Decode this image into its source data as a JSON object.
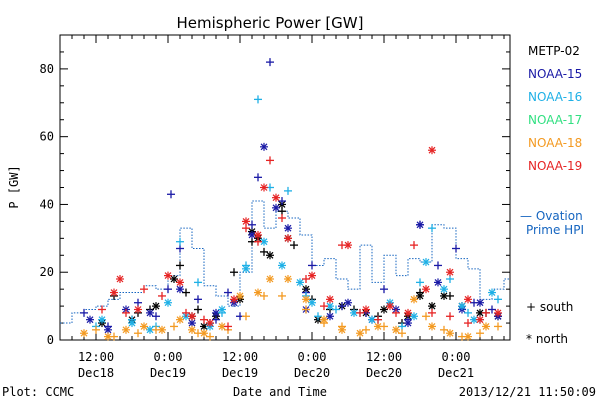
{
  "chart_data": {
    "type": "scatter",
    "title": "Hemispheric Power [GW]",
    "xlabel": "Date and Time",
    "ylabel": "P [GW]",
    "ylim": [
      0,
      90
    ],
    "yticks": [
      0,
      20,
      40,
      60,
      80
    ],
    "xlim_hours": [
      6,
      81
    ],
    "x_unit": "hours after 2013-12-18 00:00",
    "xticks": [
      {
        "x": 12,
        "top": "12:00",
        "bottom": "Dec18"
      },
      {
        "x": 24,
        "top": "0:00",
        "bottom": "Dec19"
      },
      {
        "x": 36,
        "top": "12:00",
        "bottom": "Dec19"
      },
      {
        "x": 48,
        "top": "0:00",
        "bottom": "Dec20"
      },
      {
        "x": 60,
        "top": "12:00",
        "bottom": "Dec20"
      },
      {
        "x": 72,
        "top": "0:00",
        "bottom": "Dec21"
      }
    ],
    "legend_position": "right",
    "series": [
      {
        "name": "METP-02",
        "color": "#000000",
        "south": [
          [
            15,
            13
          ],
          [
            19,
            8
          ],
          [
            21,
            9
          ],
          [
            26,
            22
          ],
          [
            27,
            14
          ],
          [
            29,
            9
          ],
          [
            31,
            5
          ],
          [
            35,
            20
          ],
          [
            38,
            29
          ],
          [
            40,
            26
          ],
          [
            43,
            38
          ],
          [
            45,
            28
          ],
          [
            48,
            12
          ],
          [
            51,
            9
          ],
          [
            55,
            9
          ],
          [
            59,
            7
          ],
          [
            63,
            5
          ],
          [
            66,
            14
          ],
          [
            71,
            13
          ],
          [
            77,
            8
          ]
        ],
        "north": [
          [
            13,
            5
          ],
          [
            18,
            6
          ],
          [
            22,
            10
          ],
          [
            25,
            18
          ],
          [
            28,
            7
          ],
          [
            30,
            4
          ],
          [
            32,
            7
          ],
          [
            36,
            12
          ],
          [
            38,
            32
          ],
          [
            39,
            30
          ],
          [
            41,
            25
          ],
          [
            43,
            40
          ],
          [
            44,
            30
          ],
          [
            47,
            15
          ],
          [
            49,
            6
          ],
          [
            53,
            10
          ],
          [
            57,
            8
          ],
          [
            60,
            9
          ],
          [
            64,
            7
          ],
          [
            66,
            13
          ],
          [
            68,
            10
          ],
          [
            70,
            13
          ],
          [
            73,
            10
          ],
          [
            76,
            8
          ],
          [
            79,
            7
          ]
        ]
      },
      {
        "name": "NOAA-15",
        "color": "#1a1aa6",
        "south": [
          [
            10,
            8
          ],
          [
            14,
            4
          ],
          [
            19,
            11
          ],
          [
            22,
            7
          ],
          [
            24,
            15
          ],
          [
            24.5,
            43
          ],
          [
            26,
            27
          ],
          [
            29,
            12
          ],
          [
            32,
            6
          ],
          [
            34,
            14
          ],
          [
            36,
            7
          ],
          [
            38,
            34
          ],
          [
            39,
            48
          ],
          [
            41,
            82
          ],
          [
            43,
            41
          ],
          [
            47,
            14
          ],
          [
            48,
            22
          ],
          [
            53,
            10
          ],
          [
            57,
            8
          ],
          [
            60,
            15
          ],
          [
            64,
            6
          ],
          [
            66,
            34
          ],
          [
            69,
            22
          ],
          [
            72,
            27
          ],
          [
            75,
            11
          ],
          [
            78,
            9
          ]
        ],
        "north": [
          [
            11,
            6
          ],
          [
            14,
            3
          ],
          [
            17,
            9
          ],
          [
            21,
            8
          ],
          [
            26,
            15
          ],
          [
            28,
            5
          ],
          [
            32,
            8
          ],
          [
            35,
            11
          ],
          [
            38,
            31
          ],
          [
            40,
            57
          ],
          [
            42,
            39
          ],
          [
            44,
            33
          ],
          [
            47,
            9
          ],
          [
            51,
            7
          ],
          [
            54,
            11
          ],
          [
            58,
            6
          ],
          [
            62,
            9
          ],
          [
            64,
            5
          ],
          [
            66,
            34
          ],
          [
            69,
            17
          ],
          [
            73,
            9
          ],
          [
            76,
            11
          ],
          [
            79,
            7
          ]
        ]
      },
      {
        "name": "NOAA-16",
        "color": "#1fb0e6",
        "south": [
          [
            12,
            4
          ],
          [
            18,
            6
          ],
          [
            22,
            4
          ],
          [
            26,
            29
          ],
          [
            29,
            17
          ],
          [
            33,
            8
          ],
          [
            37,
            22
          ],
          [
            39,
            71
          ],
          [
            41,
            45
          ],
          [
            44,
            44
          ],
          [
            47,
            13
          ],
          [
            49,
            7
          ],
          [
            52,
            9
          ],
          [
            56,
            8
          ],
          [
            59,
            6
          ],
          [
            63,
            4
          ],
          [
            66,
            17
          ],
          [
            68,
            33
          ],
          [
            71,
            18
          ],
          [
            74,
            8
          ],
          [
            76,
            6
          ],
          [
            79,
            12
          ]
        ],
        "north": [
          [
            13,
            6
          ],
          [
            18,
            5
          ],
          [
            21,
            3
          ],
          [
            24,
            11
          ],
          [
            27,
            7
          ],
          [
            31,
            4
          ],
          [
            33,
            9
          ],
          [
            37,
            21
          ],
          [
            40,
            29
          ],
          [
            43,
            22
          ],
          [
            46,
            17
          ],
          [
            48,
            11
          ],
          [
            51,
            10
          ],
          [
            55,
            8
          ],
          [
            58,
            6
          ],
          [
            61,
            11
          ],
          [
            65,
            7
          ],
          [
            67,
            23
          ],
          [
            70,
            15
          ],
          [
            73,
            10
          ],
          [
            75,
            6
          ],
          [
            78,
            14
          ]
        ]
      },
      {
        "name": "NOAA-17",
        "color": "#32e082",
        "south": [],
        "north": []
      },
      {
        "name": "NOAA-18",
        "color": "#f39a22",
        "south": [
          [
            12,
            3
          ],
          [
            15,
            1
          ],
          [
            19,
            2
          ],
          [
            22,
            3
          ],
          [
            25,
            4
          ],
          [
            29,
            2
          ],
          [
            31,
            1
          ],
          [
            34,
            3
          ],
          [
            37,
            7
          ],
          [
            40,
            13
          ],
          [
            43,
            13
          ],
          [
            47,
            9
          ],
          [
            50,
            5
          ],
          [
            53,
            4
          ],
          [
            57,
            3
          ],
          [
            60,
            4
          ],
          [
            63,
            2
          ],
          [
            67,
            7
          ],
          [
            70,
            3
          ],
          [
            73,
            1
          ],
          [
            76,
            2
          ],
          [
            79,
            4
          ]
        ],
        "north": [
          [
            10,
            2
          ],
          [
            14,
            1
          ],
          [
            17,
            3
          ],
          [
            20,
            4
          ],
          [
            23,
            3
          ],
          [
            26,
            6
          ],
          [
            28,
            3
          ],
          [
            30,
            2
          ],
          [
            33,
            4
          ],
          [
            36,
            13
          ],
          [
            39,
            14
          ],
          [
            41,
            18
          ],
          [
            44,
            18
          ],
          [
            47,
            12
          ],
          [
            50,
            6
          ],
          [
            53,
            3
          ],
          [
            56,
            2
          ],
          [
            59,
            4
          ],
          [
            62,
            3
          ],
          [
            65,
            12
          ],
          [
            68,
            4
          ],
          [
            71,
            2
          ],
          [
            74,
            1
          ],
          [
            77,
            4
          ]
        ]
      },
      {
        "name": "NOAA-19",
        "color": "#e62424",
        "south": [
          [
            13,
            9
          ],
          [
            17,
            8
          ],
          [
            20,
            15
          ],
          [
            23,
            13
          ],
          [
            27,
            8
          ],
          [
            30,
            6
          ],
          [
            34,
            4
          ],
          [
            37,
            33
          ],
          [
            39,
            29
          ],
          [
            41,
            53
          ],
          [
            43,
            36
          ],
          [
            47,
            18
          ],
          [
            50,
            10
          ],
          [
            53,
            28
          ],
          [
            56,
            8
          ],
          [
            59,
            6
          ],
          [
            62,
            8
          ],
          [
            65,
            28
          ],
          [
            68,
            8
          ],
          [
            71,
            7
          ],
          [
            74,
            5
          ],
          [
            77,
            8
          ]
        ],
        "north": [
          [
            15,
            14
          ],
          [
            16,
            18
          ],
          [
            19,
            9
          ],
          [
            24,
            19
          ],
          [
            26,
            17
          ],
          [
            28,
            7
          ],
          [
            31,
            5
          ],
          [
            35,
            12
          ],
          [
            37,
            35
          ],
          [
            39,
            31
          ],
          [
            40,
            45
          ],
          [
            42,
            42
          ],
          [
            44,
            30
          ],
          [
            48,
            19
          ],
          [
            51,
            12
          ],
          [
            54,
            28
          ],
          [
            57,
            9
          ],
          [
            61,
            10
          ],
          [
            64,
            8
          ],
          [
            67,
            15
          ],
          [
            68,
            56
          ],
          [
            71,
            20
          ],
          [
            74,
            12
          ],
          [
            76,
            6
          ],
          [
            79,
            8
          ]
        ]
      }
    ],
    "ovation": {
      "label_line1": "— Ovation",
      "label_line2": "Prime HPI",
      "color": "#1565c0",
      "x": [
        6,
        8,
        10,
        12,
        14,
        16,
        18,
        20,
        22,
        24,
        26,
        28,
        30,
        32,
        34,
        36,
        38,
        40,
        42,
        44,
        46,
        48,
        50,
        52,
        54,
        56,
        58,
        60,
        62,
        64,
        66,
        68,
        70,
        72,
        74,
        76,
        78,
        80,
        81
      ],
      "y": [
        5,
        8,
        9,
        10,
        12,
        14,
        14,
        16,
        15,
        19,
        33,
        27,
        16,
        13,
        10,
        20,
        41,
        33,
        38,
        36,
        31,
        22,
        24,
        18,
        15,
        28,
        17,
        25,
        19,
        24,
        23,
        34,
        33,
        24,
        21,
        12,
        15,
        18,
        18
      ]
    }
  },
  "legend": {
    "metp02": "METP-02",
    "noaa15": "NOAA-15",
    "noaa16": "NOAA-16",
    "noaa17": "NOAA-17",
    "noaa18": "NOAA-18",
    "noaa19": "NOAA-19",
    "south": "+ south",
    "north": "* north"
  },
  "footer": {
    "plot_credit": "Plot: CCMC",
    "timestamp": "2013/12/21 11:50:09"
  }
}
